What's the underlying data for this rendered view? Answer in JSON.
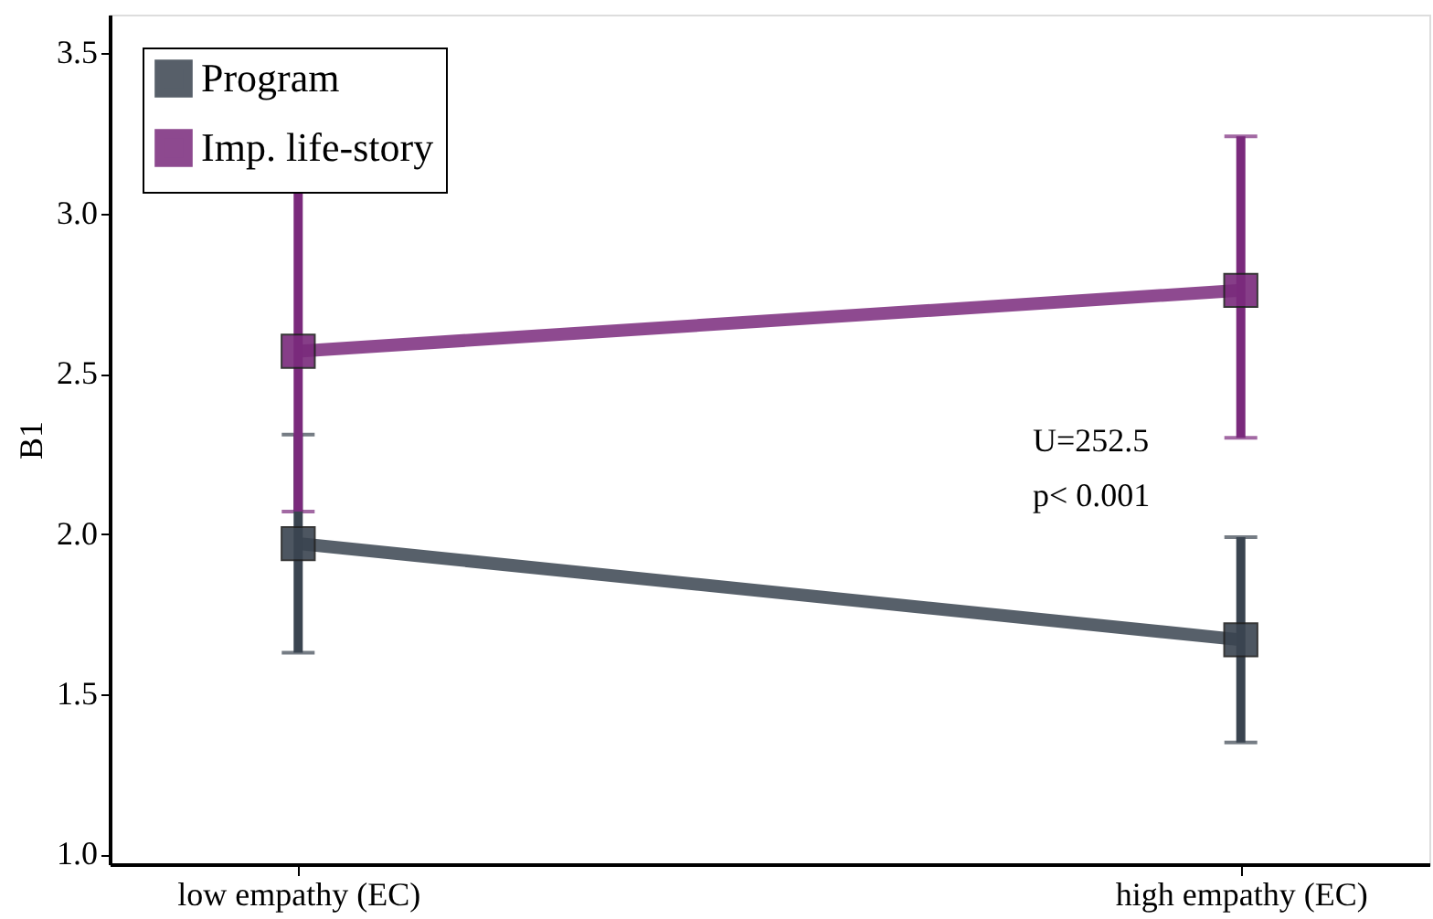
{
  "chart_data": {
    "type": "line",
    "ylabel": "B1",
    "categories": [
      "low empathy (EC)",
      "high empathy (EC)"
    ],
    "series": [
      {
        "name": "Program",
        "color": "#3a4450",
        "values": [
          1.97,
          1.67
        ],
        "errors": [
          [
            1.63,
            2.31
          ],
          [
            1.35,
            1.99
          ]
        ]
      },
      {
        "name": "Imp. life-story",
        "color": "#7a2a7c",
        "values": [
          2.57,
          2.76
        ],
        "errors": [
          [
            2.07,
            3.08
          ],
          [
            2.3,
            3.24
          ]
        ]
      }
    ],
    "ylim": [
      0.97,
      3.62
    ],
    "yticks": [
      {
        "value": 1,
        "label": "1.0"
      },
      1.5,
      {
        "value": 2,
        "label": "2.0"
      },
      2.5,
      {
        "value": 3,
        "label": "3.0"
      },
      3.5
    ],
    "grid": false,
    "legend": "top left",
    "marker": "square",
    "line_style": "solid",
    "annotations": [
      "U=252.5\np< 0.001"
    ]
  }
}
